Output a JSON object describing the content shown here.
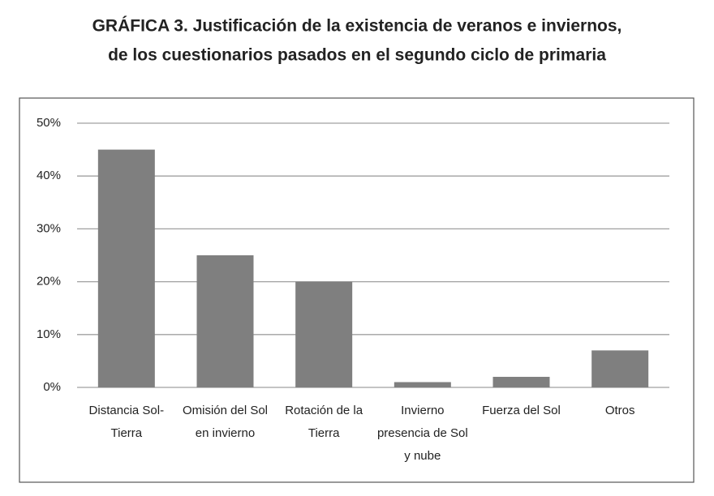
{
  "chart_data": {
    "type": "bar",
    "title": [
      "GRÁFICA 3. Justificación de la existencia de veranos e inviernos,",
      "de los cuestionarios pasados en el segundo ciclo de primaria"
    ],
    "categories": [
      [
        "Distancia Sol-",
        "Tierra"
      ],
      [
        "Omisión del Sol",
        "en invierno"
      ],
      [
        "Rotación de la",
        "Tierra"
      ],
      [
        "Invierno",
        "presencia de Sol",
        "y nube"
      ],
      [
        "Fuerza del Sol"
      ],
      [
        "Otros"
      ]
    ],
    "values": [
      45,
      25,
      20,
      1,
      2,
      7
    ],
    "color": "#7f7f7f",
    "ylim": [
      0,
      50
    ],
    "yticks": [
      {
        "value": 0,
        "label": "0%"
      },
      {
        "value": 10,
        "label": "10%"
      },
      {
        "value": 20,
        "label": "20%"
      },
      {
        "value": 30,
        "label": "30%"
      },
      {
        "value": 40,
        "label": "40%"
      },
      {
        "value": 50,
        "label": "50%"
      }
    ],
    "grid": true
  }
}
